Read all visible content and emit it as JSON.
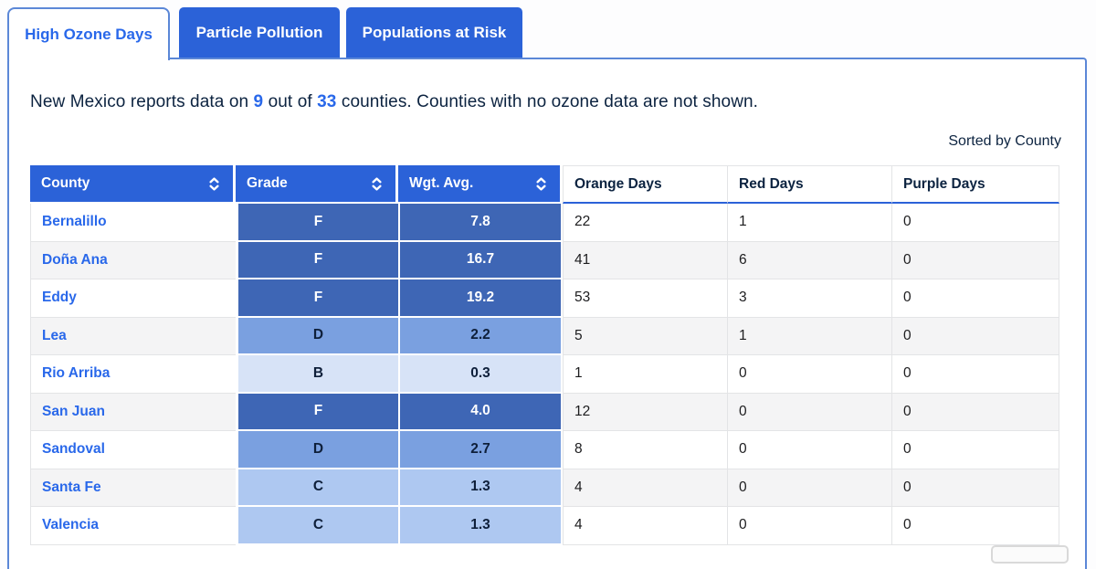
{
  "tabs": [
    {
      "label": "High Ozone Days",
      "active": true
    },
    {
      "label": "Particle Pollution",
      "active": false
    },
    {
      "label": "Populations at Risk",
      "active": false
    }
  ],
  "summary": {
    "prefix": "New Mexico reports data on ",
    "reported": "9",
    "middle": " out of ",
    "total": "33",
    "suffix": " counties. Counties with no ozone data are not shown."
  },
  "sorted_by": "Sorted by County",
  "table": {
    "sortable_columns": [
      "County",
      "Grade",
      "Wgt. Avg."
    ],
    "static_columns": [
      "Orange Days",
      "Red Days",
      "Purple Days"
    ],
    "sort_icon": "up-down-chevrons",
    "rows": [
      {
        "county": "Bernalillo",
        "grade": "F",
        "wgt_avg": "7.8",
        "orange": "22",
        "red": "1",
        "purple": "0"
      },
      {
        "county": "Doña Ana",
        "grade": "F",
        "wgt_avg": "16.7",
        "orange": "41",
        "red": "6",
        "purple": "0"
      },
      {
        "county": "Eddy",
        "grade": "F",
        "wgt_avg": "19.2",
        "orange": "53",
        "red": "3",
        "purple": "0"
      },
      {
        "county": "Lea",
        "grade": "D",
        "wgt_avg": "2.2",
        "orange": "5",
        "red": "1",
        "purple": "0"
      },
      {
        "county": "Rio Arriba",
        "grade": "B",
        "wgt_avg": "0.3",
        "orange": "1",
        "red": "0",
        "purple": "0"
      },
      {
        "county": "San Juan",
        "grade": "F",
        "wgt_avg": "4.0",
        "orange": "12",
        "red": "0",
        "purple": "0"
      },
      {
        "county": "Sandoval",
        "grade": "D",
        "wgt_avg": "2.7",
        "orange": "8",
        "red": "0",
        "purple": "0"
      },
      {
        "county": "Santa Fe",
        "grade": "C",
        "wgt_avg": "1.3",
        "orange": "4",
        "red": "0",
        "purple": "0"
      },
      {
        "county": "Valencia",
        "grade": "C",
        "wgt_avg": "1.3",
        "orange": "4",
        "red": "0",
        "purple": "0"
      }
    ]
  },
  "colors": {
    "tab_blue": "#2b62d8",
    "panel_border": "#5b87d7",
    "link_blue": "#2968ea",
    "navy_text": "#0c2340",
    "grade_F": "#3e66b5",
    "grade_D": "#7aa0e0",
    "grade_C": "#aec8f1",
    "grade_B": "#d7e3f7"
  }
}
